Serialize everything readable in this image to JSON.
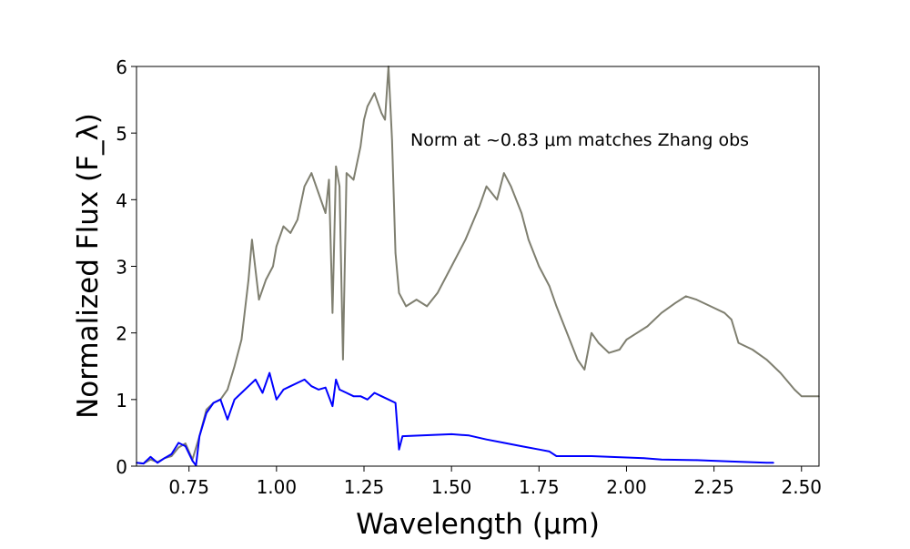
{
  "chart_data": {
    "type": "line",
    "title": "",
    "xlabel": "Wavelength (μm)",
    "ylabel": "Normalized Flux (F_λ)",
    "xlim": [
      0.6,
      2.55
    ],
    "ylim": [
      0,
      6
    ],
    "xticks": [
      0.75,
      1.0,
      1.25,
      1.5,
      1.75,
      2.0,
      2.25,
      2.5
    ],
    "xtick_labels": [
      "0.75",
      "1.00",
      "1.25",
      "1.50",
      "1.75",
      "2.00",
      "2.25",
      "2.50"
    ],
    "yticks": [
      0,
      1,
      2,
      3,
      4,
      5,
      6
    ],
    "ytick_labels": [
      "0",
      "1",
      "2",
      "3",
      "4",
      "5",
      "6"
    ],
    "grid": false,
    "legend": "none",
    "annotation": "Norm at ~0.83 μm matches Zhang obs",
    "series": [
      {
        "color": "#7f7f70",
        "x": [
          0.6,
          0.62,
          0.64,
          0.66,
          0.68,
          0.7,
          0.72,
          0.74,
          0.76,
          0.78,
          0.8,
          0.82,
          0.84,
          0.86,
          0.88,
          0.9,
          0.92,
          0.93,
          0.95,
          0.97,
          0.99,
          1.0,
          1.02,
          1.04,
          1.06,
          1.08,
          1.1,
          1.12,
          1.14,
          1.15,
          1.16,
          1.17,
          1.18,
          1.19,
          1.2,
          1.22,
          1.24,
          1.25,
          1.26,
          1.28,
          1.3,
          1.31,
          1.32,
          1.33,
          1.34,
          1.35,
          1.37,
          1.4,
          1.43,
          1.46,
          1.5,
          1.54,
          1.58,
          1.6,
          1.63,
          1.65,
          1.67,
          1.7,
          1.72,
          1.75,
          1.78,
          1.8,
          1.83,
          1.86,
          1.88,
          1.9,
          1.92,
          1.95,
          1.98,
          2.0,
          2.03,
          2.06,
          2.1,
          2.14,
          2.17,
          2.2,
          2.24,
          2.28,
          2.3,
          2.32,
          2.36,
          2.4,
          2.44,
          2.48,
          2.5,
          2.55
        ],
        "y": [
          0.05,
          0.04,
          0.1,
          0.06,
          0.12,
          0.15,
          0.28,
          0.34,
          0.1,
          0.45,
          0.85,
          0.95,
          1.0,
          1.15,
          1.5,
          1.9,
          2.8,
          3.4,
          2.5,
          2.8,
          3.0,
          3.3,
          3.6,
          3.5,
          3.7,
          4.2,
          4.4,
          4.1,
          3.8,
          4.3,
          2.3,
          4.5,
          4.2,
          1.6,
          4.4,
          4.3,
          4.8,
          5.2,
          5.4,
          5.6,
          5.3,
          5.2,
          6.0,
          4.9,
          3.2,
          2.6,
          2.4,
          2.5,
          2.4,
          2.6,
          3.0,
          3.4,
          3.9,
          4.2,
          4.0,
          4.4,
          4.2,
          3.8,
          3.4,
          3.0,
          2.7,
          2.4,
          2.0,
          1.6,
          1.45,
          2.0,
          1.85,
          1.7,
          1.75,
          1.9,
          2.0,
          2.1,
          2.3,
          2.45,
          2.55,
          2.5,
          2.4,
          2.3,
          2.2,
          1.85,
          1.75,
          1.6,
          1.4,
          1.15,
          1.05,
          1.05
        ]
      },
      {
        "color": "#0000ff",
        "x": [
          0.6,
          0.62,
          0.64,
          0.66,
          0.68,
          0.7,
          0.72,
          0.74,
          0.76,
          0.77,
          0.78,
          0.8,
          0.82,
          0.84,
          0.86,
          0.88,
          0.9,
          0.92,
          0.94,
          0.96,
          0.98,
          1.0,
          1.02,
          1.04,
          1.06,
          1.08,
          1.1,
          1.12,
          1.14,
          1.16,
          1.17,
          1.18,
          1.2,
          1.22,
          1.24,
          1.26,
          1.28,
          1.3,
          1.32,
          1.34,
          1.35,
          1.36,
          1.5,
          1.55,
          1.6,
          1.65,
          1.7,
          1.75,
          1.78,
          1.8,
          1.85,
          1.9,
          1.95,
          2.0,
          2.05,
          2.1,
          2.2,
          2.3,
          2.4,
          2.42
        ],
        "y": [
          0.05,
          0.04,
          0.14,
          0.05,
          0.12,
          0.18,
          0.35,
          0.3,
          0.08,
          0.01,
          0.45,
          0.8,
          0.95,
          1.0,
          0.7,
          1.0,
          1.1,
          1.2,
          1.3,
          1.1,
          1.4,
          1.0,
          1.15,
          1.2,
          1.25,
          1.3,
          1.2,
          1.15,
          1.18,
          0.9,
          1.3,
          1.15,
          1.1,
          1.05,
          1.05,
          1.0,
          1.1,
          1.05,
          1.0,
          0.95,
          0.25,
          0.45,
          0.48,
          0.46,
          0.4,
          0.35,
          0.3,
          0.25,
          0.22,
          0.15,
          0.15,
          0.15,
          0.14,
          0.13,
          0.12,
          0.1,
          0.09,
          0.07,
          0.05,
          0.05
        ]
      }
    ]
  }
}
